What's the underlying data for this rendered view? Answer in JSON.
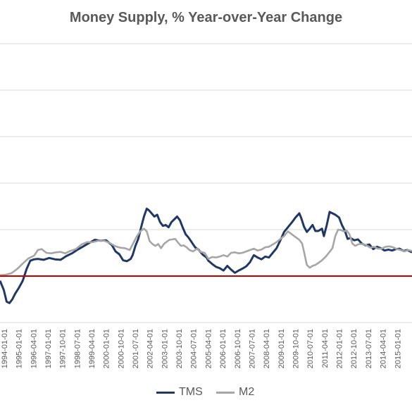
{
  "chart_data": {
    "type": "line",
    "title": "Money Supply, % Year-over-Year Change",
    "xlabel": "",
    "ylabel": "",
    "x_ticks": [
      "1994-01-01",
      "1995-01-01",
      "1996-04-01",
      "1997-01-01",
      "1997-10-01",
      "1998-07-01",
      "1999-04-01",
      "2000-01-01",
      "2000-10-01",
      "2001-07-01",
      "2002-04-01",
      "2003-01-01",
      "2003-10-01",
      "2004-07-01",
      "2005-04-01",
      "2006-01-01",
      "2006-10-01",
      "2007-07-01",
      "2008-04-01",
      "2009-01-01",
      "2009-10-01",
      "2010-07-01",
      "2011-04-01",
      "2012-01-01",
      "2012-10-01",
      "2013-07-01",
      "2014-04-01",
      "2015-01-01"
    ],
    "xlim": [
      1994.0,
      2015.75
    ],
    "ylim": [
      -10,
      50
    ],
    "grid": true,
    "legend_position": "bottom",
    "reference_line": {
      "y": 0,
      "color": "#c00000"
    },
    "series": [
      {
        "name": "TMS",
        "color": "#1f3864",
        "points": [
          [
            1994.0,
            -1
          ],
          [
            1994.2,
            -3
          ],
          [
            1994.35,
            -5.5
          ],
          [
            1994.5,
            -5.8
          ],
          [
            1994.65,
            -5
          ],
          [
            1994.8,
            -3.8
          ],
          [
            1995.0,
            -2.5
          ],
          [
            1995.2,
            -1
          ],
          [
            1995.4,
            1.5
          ],
          [
            1995.6,
            3.3
          ],
          [
            1995.8,
            3.6
          ],
          [
            1996.0,
            3.7
          ],
          [
            1996.3,
            3.5
          ],
          [
            1996.6,
            3.9
          ],
          [
            1996.9,
            3.6
          ],
          [
            1997.2,
            3.5
          ],
          [
            1997.5,
            4.3
          ],
          [
            1997.8,
            4.9
          ],
          [
            1998.1,
            5.7
          ],
          [
            1998.4,
            6.4
          ],
          [
            1998.7,
            7.1
          ],
          [
            1999.0,
            7.8
          ],
          [
            1999.3,
            7.6
          ],
          [
            1999.6,
            7.7
          ],
          [
            1999.9,
            6.7
          ],
          [
            2000.1,
            5.3
          ],
          [
            2000.3,
            4.7
          ],
          [
            2000.5,
            3.4
          ],
          [
            2000.7,
            3.2
          ],
          [
            2000.9,
            3.7
          ],
          [
            2001.0,
            4.5
          ],
          [
            2001.15,
            6.5
          ],
          [
            2001.3,
            8
          ],
          [
            2001.45,
            10.5
          ],
          [
            2001.6,
            12.8
          ],
          [
            2001.75,
            14.5
          ],
          [
            2001.85,
            14.2
          ],
          [
            2002.0,
            13.5
          ],
          [
            2002.15,
            12.8
          ],
          [
            2002.3,
            13.2
          ],
          [
            2002.45,
            11.6
          ],
          [
            2002.6,
            10.8
          ],
          [
            2002.75,
            11
          ],
          [
            2002.9,
            10.5
          ],
          [
            2003.05,
            11.6
          ],
          [
            2003.2,
            12.2
          ],
          [
            2003.35,
            12.8
          ],
          [
            2003.5,
            12
          ],
          [
            2003.65,
            10.4
          ],
          [
            2003.8,
            9
          ],
          [
            2003.95,
            8.3
          ],
          [
            2004.1,
            7.4
          ],
          [
            2004.3,
            6.2
          ],
          [
            2004.5,
            5.6
          ],
          [
            2004.7,
            4.6
          ],
          [
            2004.9,
            4
          ],
          [
            2005.0,
            3.3
          ],
          [
            2005.2,
            2.6
          ],
          [
            2005.4,
            2
          ],
          [
            2005.6,
            1.7
          ],
          [
            2005.8,
            1.2
          ],
          [
            2006.0,
            2.2
          ],
          [
            2006.2,
            1.4
          ],
          [
            2006.4,
            0.7
          ],
          [
            2006.6,
            1.2
          ],
          [
            2006.8,
            1.6
          ],
          [
            2007.0,
            2.1
          ],
          [
            2007.2,
            3
          ],
          [
            2007.4,
            4.5
          ],
          [
            2007.6,
            4
          ],
          [
            2007.8,
            3.6
          ],
          [
            2008.0,
            4.2
          ],
          [
            2008.2,
            4
          ],
          [
            2008.4,
            5
          ],
          [
            2008.6,
            6
          ],
          [
            2008.8,
            7.7
          ],
          [
            2009.0,
            9.5
          ],
          [
            2009.2,
            10.5
          ],
          [
            2009.4,
            11.5
          ],
          [
            2009.6,
            12.6
          ],
          [
            2009.8,
            13.5
          ],
          [
            2009.9,
            12.5
          ],
          [
            2010.05,
            10.6
          ],
          [
            2010.2,
            9.5
          ],
          [
            2010.35,
            10.2
          ],
          [
            2010.5,
            11
          ],
          [
            2010.65,
            9.7
          ],
          [
            2010.8,
            9.7
          ],
          [
            2011.0,
            10.2
          ],
          [
            2011.1,
            8.6
          ],
          [
            2011.25,
            11
          ],
          [
            2011.4,
            13.8
          ],
          [
            2011.55,
            13.5
          ],
          [
            2011.7,
            13.2
          ],
          [
            2011.9,
            12.6
          ],
          [
            2012.05,
            11
          ],
          [
            2012.2,
            9.8
          ],
          [
            2012.35,
            8
          ],
          [
            2012.5,
            8.2
          ],
          [
            2012.7,
            7.7
          ],
          [
            2012.9,
            7.9
          ],
          [
            2013.1,
            7
          ],
          [
            2013.3,
            6.6
          ],
          [
            2013.5,
            6.8
          ],
          [
            2013.7,
            5.8
          ],
          [
            2013.9,
            6.3
          ],
          [
            2014.1,
            6
          ],
          [
            2014.3,
            5.5
          ],
          [
            2014.5,
            5.7
          ],
          [
            2014.7,
            5.5
          ],
          [
            2014.9,
            5.8
          ],
          [
            2015.1,
            5.9
          ],
          [
            2015.3,
            5.4
          ],
          [
            2015.5,
            5.6
          ],
          [
            2015.75,
            5.1
          ]
        ]
      },
      {
        "name": "M2",
        "color": "#a6a6a6",
        "points": [
          [
            1994.0,
            0.2
          ],
          [
            1994.3,
            0.3
          ],
          [
            1994.6,
            0.6
          ],
          [
            1994.9,
            1.5
          ],
          [
            1995.2,
            2.7
          ],
          [
            1995.5,
            3.8
          ],
          [
            1995.8,
            4.4
          ],
          [
            1996.0,
            5.6
          ],
          [
            1996.2,
            5.8
          ],
          [
            1996.45,
            5
          ],
          [
            1996.7,
            4.9
          ],
          [
            1996.95,
            5.1
          ],
          [
            1997.2,
            5.2
          ],
          [
            1997.45,
            4.9
          ],
          [
            1997.7,
            5.4
          ],
          [
            1998.0,
            5.8
          ],
          [
            1998.3,
            6.8
          ],
          [
            1998.6,
            7.3
          ],
          [
            1998.9,
            7.3
          ],
          [
            1999.2,
            7.6
          ],
          [
            1999.5,
            7.6
          ],
          [
            1999.8,
            7.1
          ],
          [
            2000.1,
            6.4
          ],
          [
            2000.35,
            6.1
          ],
          [
            2000.6,
            6
          ],
          [
            2000.85,
            5.6
          ],
          [
            2001.0,
            6.8
          ],
          [
            2001.2,
            8.4
          ],
          [
            2001.4,
            9.6
          ],
          [
            2001.6,
            10.2
          ],
          [
            2001.75,
            9.6
          ],
          [
            2001.9,
            7.5
          ],
          [
            2002.05,
            6.9
          ],
          [
            2002.2,
            6.5
          ],
          [
            2002.35,
            6.9
          ],
          [
            2002.5,
            6
          ],
          [
            2002.65,
            6.9
          ],
          [
            2002.8,
            7.4
          ],
          [
            2002.95,
            7.8
          ],
          [
            2003.1,
            7.9
          ],
          [
            2003.25,
            8
          ],
          [
            2003.4,
            7.2
          ],
          [
            2003.55,
            6.5
          ],
          [
            2003.7,
            6.6
          ],
          [
            2003.85,
            6.2
          ],
          [
            2004.0,
            5.6
          ],
          [
            2004.2,
            5.3
          ],
          [
            2004.4,
            5.9
          ],
          [
            2004.6,
            5.2
          ],
          [
            2004.8,
            5
          ],
          [
            2005.0,
            3.7
          ],
          [
            2005.2,
            4.1
          ],
          [
            2005.4,
            4
          ],
          [
            2005.6,
            4.2
          ],
          [
            2005.8,
            4.5
          ],
          [
            2006.0,
            4.2
          ],
          [
            2006.2,
            5
          ],
          [
            2006.4,
            5.1
          ],
          [
            2006.6,
            4.9
          ],
          [
            2006.8,
            5
          ],
          [
            2007.0,
            5.3
          ],
          [
            2007.2,
            5.6
          ],
          [
            2007.4,
            5.9
          ],
          [
            2007.6,
            5.5
          ],
          [
            2007.8,
            5.7
          ],
          [
            2008.0,
            6.2
          ],
          [
            2008.2,
            6.3
          ],
          [
            2008.4,
            6.8
          ],
          [
            2008.6,
            7.3
          ],
          [
            2008.8,
            8
          ],
          [
            2009.0,
            8.6
          ],
          [
            2009.2,
            9.6
          ],
          [
            2009.4,
            9
          ],
          [
            2009.6,
            8.4
          ],
          [
            2009.8,
            7.8
          ],
          [
            2009.95,
            7
          ],
          [
            2010.05,
            5.2
          ],
          [
            2010.2,
            2.4
          ],
          [
            2010.35,
            1.8
          ],
          [
            2010.5,
            2.2
          ],
          [
            2010.65,
            2.4
          ],
          [
            2010.8,
            2.8
          ],
          [
            2011.0,
            3.4
          ],
          [
            2011.2,
            4.2
          ],
          [
            2011.4,
            5.2
          ],
          [
            2011.55,
            6
          ],
          [
            2011.7,
            8.6
          ],
          [
            2011.85,
            10
          ],
          [
            2012.0,
            9.9
          ],
          [
            2012.15,
            9.6
          ],
          [
            2012.3,
            9.8
          ],
          [
            2012.45,
            9
          ],
          [
            2012.6,
            7
          ],
          [
            2012.75,
            6.5
          ],
          [
            2012.95,
            6.9
          ],
          [
            2013.15,
            6.9
          ],
          [
            2013.35,
            6.6
          ],
          [
            2013.55,
            6.1
          ],
          [
            2013.75,
            6.3
          ],
          [
            2013.95,
            5.9
          ],
          [
            2014.15,
            5.9
          ],
          [
            2014.35,
            6.3
          ],
          [
            2014.55,
            6.4
          ],
          [
            2014.75,
            6.2
          ],
          [
            2014.95,
            5.8
          ],
          [
            2015.15,
            5.6
          ],
          [
            2015.35,
            5.3
          ],
          [
            2015.55,
            5.6
          ],
          [
            2015.75,
            5.4
          ]
        ]
      }
    ]
  }
}
